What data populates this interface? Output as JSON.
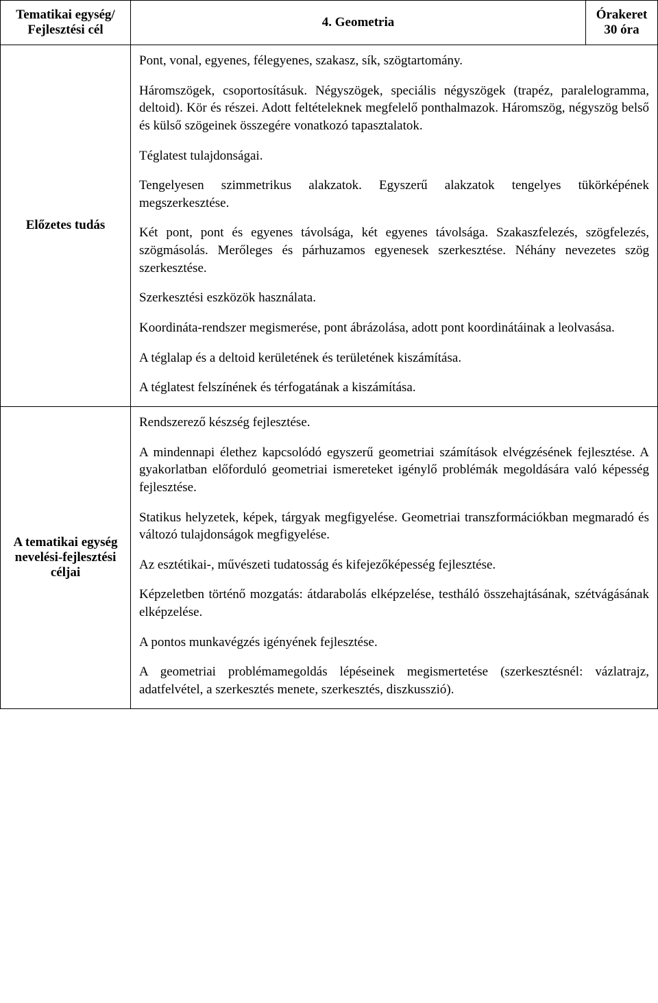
{
  "header": {
    "left_line1": "Tematikai egység/",
    "left_line2": "Fejlesztési cél",
    "title": "4. Geometria",
    "right_line1": "Órakeret",
    "right_line2": "30 óra"
  },
  "row1": {
    "label": "Előzetes tudás",
    "paragraphs": [
      "Pont, vonal, egyenes, félegyenes, szakasz, sík, szögtartomány.",
      "Háromszögek, csoportosításuk. Négyszögek, speciális négyszögek (trapéz, paralelogramma, deltoid). Kör és részei. Adott feltételeknek megfelelő ponthalmazok. Háromszög, négyszög belső és külső szögeinek összegére vonatkozó tapasztalatok.",
      "Téglatest tulajdonságai.",
      "Tengelyesen szimmetrikus alakzatok. Egyszerű alakzatok tengelyes tükörképének megszerkesztése.",
      "Két pont, pont és egyenes távolsága, két egyenes távolsága. Szakaszfelezés, szögfelezés, szögmásolás. Merőleges és párhuzamos egyenesek szerkesztése. Néhány nevezetes szög szerkesztése.",
      "Szerkesztési eszközök használata.",
      "Koordináta-rendszer megismerése, pont ábrázolása, adott pont koordinátáinak a leolvasása.",
      "A téglalap és a deltoid kerületének és területének kiszámítása.",
      "A téglatest felszínének és térfogatának a kiszámítása."
    ]
  },
  "row2": {
    "label": "A tematikai egység nevelési-fejlesztési céljai",
    "paragraphs": [
      "Rendszerező készség fejlesztése.",
      "A mindennapi élethez kapcsolódó egyszerű geometriai számítások elvégzésének fejlesztése. A gyakorlatban előforduló geometriai ismereteket igénylő problémák megoldására való képesség fejlesztése.",
      "Statikus helyzetek, képek, tárgyak megfigyelése. Geometriai transzformációkban megmaradó és változó tulajdonságok megfigyelése.",
      "Az esztétikai-, művészeti tudatosság és kifejezőképesség fejlesztése.",
      "Képzeletben történő mozgatás: átdarabolás elképzelése, testháló összehajtásának, szétvágásának elképzelése.",
      "A pontos munkavégzés igényének fejlesztése.",
      "A geometriai problémamegoldás lépéseinek megismertetése (szerkesztésnél: vázlatrajz, adatfelvétel, a szerkesztés menete, szerkesztés, diszkusszió)."
    ]
  }
}
